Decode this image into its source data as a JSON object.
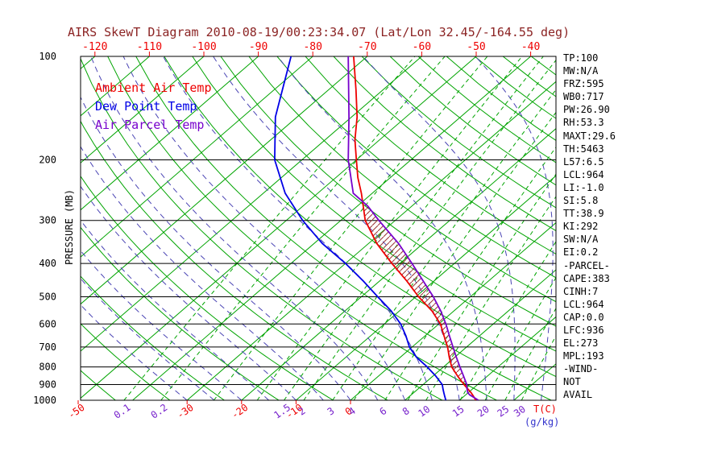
{
  "title": "AIRS SkewT Diagram 2010-08-19/00:23:34.07 (Lat/Lon 32.45/-164.55 deg)",
  "colors": {
    "title": "#8b2323",
    "axis_red": "#ee0000",
    "ambient": "#ee0000",
    "dewpoint": "#0000e6",
    "parcel": "#7700cc",
    "isotherm": "#00a400",
    "dry_adiabat": "#00a400",
    "moist_adiabat": "#4a44b4",
    "mixing_ratio": "#00a400",
    "mixing_label": "#7722cc",
    "gkg_label": "#3333cc",
    "pressure_line": "#000000",
    "hatch": "#993333",
    "stats_text": "#000000"
  },
  "legend": {
    "items": [
      {
        "label": "Ambient Air Temp",
        "color": "#ee0000"
      },
      {
        "label": "Dew Point Temp",
        "color": "#0000e6"
      },
      {
        "label": "Air Parcel Temp",
        "color": "#7700cc"
      }
    ]
  },
  "axes": {
    "pressure_axis_label": "PRESSURE (MB)",
    "pressure_ticks": [
      100,
      200,
      300,
      400,
      500,
      600,
      700,
      800,
      900,
      1000
    ],
    "top_temperature_ticks": [
      -120,
      -110,
      -100,
      -90,
      -80,
      -70,
      -60,
      -50,
      -40
    ],
    "bottom_temperature_ticks": [
      -50,
      -30,
      -20,
      -10,
      0
    ],
    "temperature_unit_label": "T(C)",
    "mixing_ratio_tick_labels": [
      0.1,
      0.2,
      1.5,
      2,
      3,
      4,
      6,
      8,
      10,
      15,
      20,
      25,
      30
    ],
    "mixing_ratio_unit_label": "(g/kg)"
  },
  "grid": {
    "isotherms_c": {
      "min": -130,
      "max": 40,
      "step": 10
    },
    "dry_adiabats_k": {
      "min": 220,
      "max": 460,
      "step": 10
    },
    "moist_adiabats_c": {
      "min": -30,
      "max": 35,
      "step": 5
    },
    "mixing_ratio_lines_gkg": [
      0.1,
      0.2,
      0.5,
      1,
      1.5,
      2,
      3,
      4,
      6,
      8,
      10,
      15,
      20,
      25,
      30
    ]
  },
  "stats_panel": {
    "lines": [
      "TP:100",
      "MW:N/A",
      "FRZ:595",
      "WB0:717",
      "PW:26.90",
      "RH:53.3",
      "MAXT:29.6",
      "TH:5463",
      "L57:6.5",
      "LCL:964",
      "LI:-1.0",
      "SI:5.8",
      "TT:38.9",
      "KI:292",
      "SW:N/A",
      "EI:0.2",
      "-PARCEL-",
      "CAPE:383",
      "CINH:7",
      "LCL:964",
      "CAP:0.0",
      "LFC:936",
      "EL:273",
      "MPL:193",
      "-WIND-",
      "NOT",
      "AVAIL"
    ]
  },
  "chart_data": {
    "type": "line",
    "variant": "skewt-logp",
    "title": "AIRS SkewT Diagram 2010-08-19/00:23:34.07 (Lat/Lon 32.45/-164.55 deg)",
    "y_axis": {
      "label": "PRESSURE (MB)",
      "scale": "log",
      "range": [
        100,
        1000
      ]
    },
    "x_axis": {
      "label": "T(C)",
      "surface_range": [
        -53,
        38
      ],
      "top_range": [
        -126,
        -35
      ]
    },
    "legend_position": "top-left-inside",
    "grid_on": true,
    "series": [
      {
        "id": "ambient-air-temp",
        "name": "Ambient Air Temp",
        "color": "#ee0000",
        "points_mb_c": "pressure(mb), temperature(C)",
        "points": [
          [
            1000,
            23
          ],
          [
            975,
            21.8
          ],
          [
            950,
            20.5
          ],
          [
            925,
            19
          ],
          [
            900,
            17.5
          ],
          [
            850,
            14.5
          ],
          [
            800,
            11.5
          ],
          [
            750,
            9
          ],
          [
            700,
            6.5
          ],
          [
            650,
            3.5
          ],
          [
            600,
            0.3
          ],
          [
            550,
            -4
          ],
          [
            500,
            -9.5
          ],
          [
            450,
            -15
          ],
          [
            400,
            -21.5
          ],
          [
            350,
            -28.5
          ],
          [
            300,
            -35.5
          ],
          [
            250,
            -42
          ],
          [
            225,
            -46
          ],
          [
            200,
            -50
          ],
          [
            175,
            -54.5
          ],
          [
            150,
            -59
          ],
          [
            125,
            -65
          ],
          [
            100,
            -72.5
          ]
        ]
      },
      {
        "id": "dew-point-temp",
        "name": "Dew Point Temp",
        "color": "#0000e6",
        "points": [
          [
            1000,
            17.5
          ],
          [
            975,
            16.5
          ],
          [
            950,
            15.5
          ],
          [
            925,
            14.5
          ],
          [
            900,
            13.5
          ],
          [
            850,
            10.5
          ],
          [
            800,
            7
          ],
          [
            750,
            3
          ],
          [
            700,
            -0.5
          ],
          [
            650,
            -3.5
          ],
          [
            600,
            -7
          ],
          [
            550,
            -11.5
          ],
          [
            500,
            -17
          ],
          [
            450,
            -23
          ],
          [
            400,
            -30
          ],
          [
            350,
            -38.5
          ],
          [
            300,
            -47
          ],
          [
            250,
            -56
          ],
          [
            200,
            -65
          ],
          [
            150,
            -74
          ],
          [
            100,
            -84
          ]
        ]
      },
      {
        "id": "air-parcel-temp",
        "name": "Air Parcel Temp",
        "color": "#7700cc",
        "points": [
          [
            1000,
            23.5
          ],
          [
            964,
            20.7
          ],
          [
            950,
            19.9
          ],
          [
            925,
            18.9
          ],
          [
            900,
            18
          ],
          [
            850,
            15.6
          ],
          [
            800,
            13
          ],
          [
            750,
            10.3
          ],
          [
            700,
            7.5
          ],
          [
            650,
            4.5
          ],
          [
            600,
            1.3
          ],
          [
            550,
            -2.4
          ],
          [
            500,
            -6.8
          ],
          [
            450,
            -12
          ],
          [
            400,
            -17.8
          ],
          [
            350,
            -24.5
          ],
          [
            300,
            -33
          ],
          [
            273,
            -38
          ],
          [
            250,
            -43.5
          ],
          [
            200,
            -51.5
          ],
          [
            150,
            -60.5
          ],
          [
            100,
            -73.5
          ]
        ]
      }
    ],
    "cape_area": {
      "between": [
        "air-parcel-temp",
        "ambient-air-temp"
      ],
      "lfc_mb": 936,
      "el_mb": 273,
      "cape_jkg": 383,
      "cinh_jkg": 7
    }
  }
}
